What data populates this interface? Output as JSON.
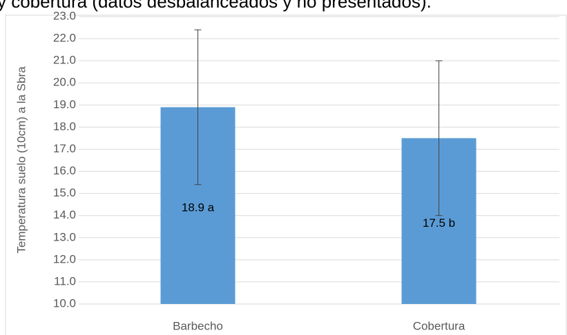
{
  "chart_data": {
    "type": "bar",
    "title": "y cobertura (datos desbalanceados y no presentados).",
    "y_label": "Temperatura suelo (10cm) a la Sbra",
    "categories": [
      "Barbecho",
      "Cobertura"
    ],
    "values": [
      18.9,
      17.5
    ],
    "value_labels": [
      "18.9 a",
      "17.5 b"
    ],
    "errors": [
      3.5,
      3.5
    ],
    "color": "#5b9bd5",
    "ylim": [
      10,
      23
    ],
    "yticks": [
      {
        "value": 10,
        "label": "10.0"
      },
      {
        "value": 11,
        "label": "11.0"
      },
      {
        "value": 12,
        "label": "12.0"
      },
      {
        "value": 13,
        "label": "13.0"
      },
      {
        "value": 14,
        "label": "14.0"
      },
      {
        "value": 15,
        "label": "15.0"
      },
      {
        "value": 16,
        "label": "16.0"
      },
      {
        "value": 17,
        "label": "17.0"
      },
      {
        "value": 18,
        "label": "18.0"
      },
      {
        "value": 19,
        "label": "19.0"
      },
      {
        "value": 20,
        "label": "20.0"
      },
      {
        "value": 21,
        "label": "21.0"
      },
      {
        "value": 22,
        "label": "22.0"
      },
      {
        "value": 23,
        "label": "23.0"
      }
    ],
    "grid": true
  }
}
